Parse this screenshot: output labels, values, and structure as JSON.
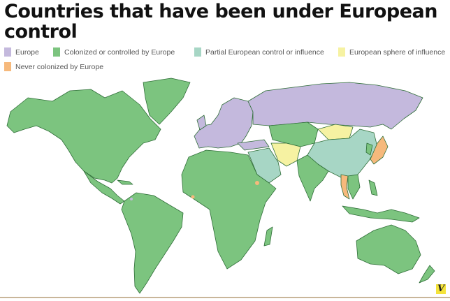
{
  "title": "Countries that have been under European control",
  "legend": [
    {
      "label": "Europe",
      "color": "#c4b9dd"
    },
    {
      "label": "Colonized or controlled by Europe",
      "color": "#7cc47f"
    },
    {
      "label": "Partial European control or influence",
      "color": "#a7d6c5"
    },
    {
      "label": "European sphere of influence",
      "color": "#f6f2a2"
    },
    {
      "label": "Never colonized by Europe",
      "color": "#f6b97c"
    }
  ],
  "logo": "V"
}
